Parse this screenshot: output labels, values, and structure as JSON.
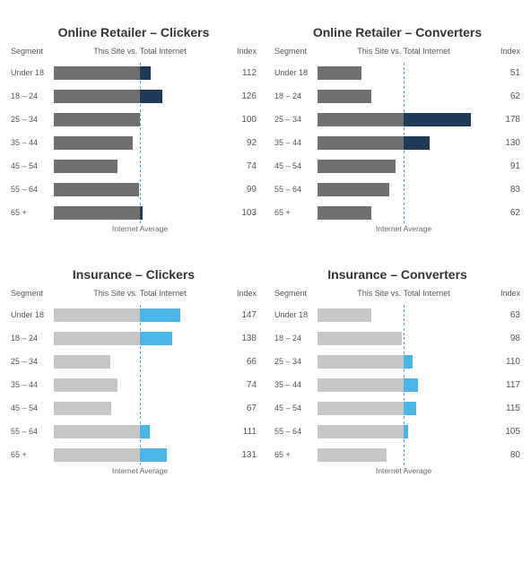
{
  "layout": {
    "rows": 2,
    "cols": 2
  },
  "segments": [
    "Under 18",
    "18 – 24",
    "25 – 34",
    "35 – 44",
    "45 – 54",
    "55 – 64",
    "65 +"
  ],
  "headers": {
    "segment": "Segment",
    "bar": "This Site vs. Total Internet",
    "index": "Index"
  },
  "avg_label": "Internet Average",
  "bar_max": 200,
  "ref_value": 100,
  "ref_line_color": "#5aa2c8",
  "panels": [
    {
      "key": "or_clickers",
      "title": "Online Retailer – Clickers",
      "base_color": "#6f6f6f",
      "highlight_color": "#1f3b5a",
      "indices": [
        112,
        126,
        100,
        92,
        74,
        99,
        103
      ]
    },
    {
      "key": "or_converters",
      "title": "Online Retailer – Converters",
      "base_color": "#6f6f6f",
      "highlight_color": "#1f3b5a",
      "indices": [
        51,
        62,
        178,
        130,
        91,
        83,
        62
      ]
    },
    {
      "key": "ins_clickers",
      "title": "Insurance – Clickers",
      "base_color": "#c6c6c6",
      "highlight_color": "#49b6e6",
      "indices": [
        147,
        138,
        66,
        74,
        67,
        111,
        131
      ]
    },
    {
      "key": "ins_converters",
      "title": "Insurance – Converters",
      "base_color": "#c6c6c6",
      "highlight_color": "#49b6e6",
      "indices": [
        63,
        98,
        110,
        117,
        115,
        105,
        80
      ]
    }
  ]
}
